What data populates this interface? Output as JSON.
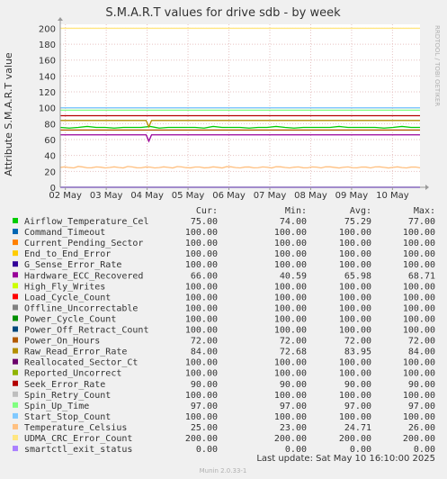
{
  "chart_data": {
    "type": "line",
    "title": "S.M.A.R.T values for drive sdb - by week",
    "ylabel": "Attribute S.M.A.R.T value",
    "watermark": "RRDTOOL / TOBI OETIKER",
    "ylim": [
      0,
      205
    ],
    "y_ticks": [
      0,
      20,
      40,
      60,
      80,
      100,
      120,
      140,
      160,
      180,
      200
    ],
    "x_ticks": [
      "02 May",
      "03 May",
      "04 May",
      "05 May",
      "06 May",
      "07 May",
      "08 May",
      "09 May",
      "10 May"
    ],
    "xlim": [
      "2025-05-01T21:00",
      "2025-05-10T16:10"
    ],
    "grid": true,
    "legend_headers": {
      "cur": "Cur:",
      "min": "Min:",
      "avg": "Avg:",
      "max": "Max:"
    },
    "series": [
      {
        "name": "Airflow_Temperature_Cel",
        "color": "#00cc00",
        "cur": "75.00",
        "min": "74.00",
        "avg": "75.29",
        "max": "77.00",
        "level": 75
      },
      {
        "name": "Command_Timeout",
        "color": "#0066b3",
        "cur": "100.00",
        "min": "100.00",
        "avg": "100.00",
        "max": "100.00",
        "level": 100
      },
      {
        "name": "Current_Pending_Sector",
        "color": "#ff8000",
        "cur": "100.00",
        "min": "100.00",
        "avg": "100.00",
        "max": "100.00",
        "level": 100
      },
      {
        "name": "End_to_End_Error",
        "color": "#ffcc00",
        "cur": "100.00",
        "min": "100.00",
        "avg": "100.00",
        "max": "100.00",
        "level": 100
      },
      {
        "name": "G_Sense_Error_Rate",
        "color": "#330099",
        "cur": "100.00",
        "min": "100.00",
        "avg": "100.00",
        "max": "100.00",
        "level": 100
      },
      {
        "name": "Hardware_ECC_Recovered",
        "color": "#990099",
        "cur": "66.00",
        "min": "40.59",
        "avg": "65.98",
        "max": "68.71",
        "level": 66
      },
      {
        "name": "High_Fly_Writes",
        "color": "#ccff00",
        "cur": "100.00",
        "min": "100.00",
        "avg": "100.00",
        "max": "100.00",
        "level": 100
      },
      {
        "name": "Load_Cycle_Count",
        "color": "#ff0000",
        "cur": "100.00",
        "min": "100.00",
        "avg": "100.00",
        "max": "100.00",
        "level": 100
      },
      {
        "name": "Offline_Uncorrectable",
        "color": "#808080",
        "cur": "100.00",
        "min": "100.00",
        "avg": "100.00",
        "max": "100.00",
        "level": 100
      },
      {
        "name": "Power_Cycle_Count",
        "color": "#008f00",
        "cur": "100.00",
        "min": "100.00",
        "avg": "100.00",
        "max": "100.00",
        "level": 100
      },
      {
        "name": "Power_Off_Retract_Count",
        "color": "#00487d",
        "cur": "100.00",
        "min": "100.00",
        "avg": "100.00",
        "max": "100.00",
        "level": 100
      },
      {
        "name": "Power_On_Hours",
        "color": "#b35a00",
        "cur": "72.00",
        "min": "72.00",
        "avg": "72.00",
        "max": "72.00",
        "level": 72
      },
      {
        "name": "Raw_Read_Error_Rate",
        "color": "#b38f00",
        "cur": "84.00",
        "min": "72.68",
        "avg": "83.95",
        "max": "84.00",
        "level": 84
      },
      {
        "name": "Reallocated_Sector_Ct",
        "color": "#6b006b",
        "cur": "100.00",
        "min": "100.00",
        "avg": "100.00",
        "max": "100.00",
        "level": 100
      },
      {
        "name": "Reported_Uncorrect",
        "color": "#8fb300",
        "cur": "100.00",
        "min": "100.00",
        "avg": "100.00",
        "max": "100.00",
        "level": 100
      },
      {
        "name": "Seek_Error_Rate",
        "color": "#b30000",
        "cur": "90.00",
        "min": "90.00",
        "avg": "90.00",
        "max": "90.00",
        "level": 90
      },
      {
        "name": "Spin_Retry_Count",
        "color": "#bebebe",
        "cur": "100.00",
        "min": "100.00",
        "avg": "100.00",
        "max": "100.00",
        "level": 100
      },
      {
        "name": "Spin_Up_Time",
        "color": "#80ff80",
        "cur": "97.00",
        "min": "97.00",
        "avg": "97.00",
        "max": "97.00",
        "level": 97
      },
      {
        "name": "Start_Stop_Count",
        "color": "#80c9ff",
        "cur": "100.00",
        "min": "100.00",
        "avg": "100.00",
        "max": "100.00",
        "level": 100
      },
      {
        "name": "Temperature_Celsius",
        "color": "#ffc080",
        "cur": "25.00",
        "min": "23.00",
        "avg": "24.71",
        "max": "26.00",
        "level": 25
      },
      {
        "name": "UDMA_CRC_Error_Count",
        "color": "#ffe680",
        "cur": "200.00",
        "min": "200.00",
        "avg": "200.00",
        "max": "200.00",
        "level": 200
      },
      {
        "name": "smartctl_exit_status",
        "color": "#aa80ff",
        "cur": "0.00",
        "min": "0.00",
        "avg": "0.00",
        "max": "0.00",
        "level": 0
      }
    ],
    "last_update": "Last update:  Sat May 10 16:10:00 2025",
    "footer": "Munin 2.0.33-1"
  }
}
